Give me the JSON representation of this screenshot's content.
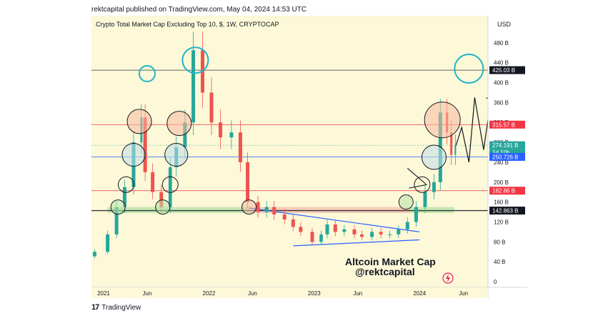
{
  "header": {
    "publisher": "rektcapital published on TradingView.com, May 04, 2024 14:53 UTC"
  },
  "footer": {
    "logo_icon": "tradingview-logo-icon",
    "brand": "TradingView"
  },
  "chart_data": {
    "type": "candlestick",
    "title": "Crypto Total Market Cap Excluding Top 10, $, 1W, CRYPTOCAP",
    "currency": "USD",
    "annotation_title": "Altcoin Market Cap",
    "annotation_handle": "@rektcapital",
    "y_unit": "B",
    "ylim": [
      0,
      520
    ],
    "y_ticks": [
      0,
      40,
      80,
      120,
      160,
      200,
      240,
      280,
      320,
      360,
      400,
      440,
      480
    ],
    "y_tick_labels": [
      "0",
      "40 B",
      "80 B",
      "120 B",
      "160 B",
      "200 B",
      "240 B",
      "280 B",
      "320 B",
      "360 B",
      "400 B",
      "440 B",
      "480 B"
    ],
    "x_tick_labels": [
      "2021",
      "Jun",
      "2022",
      "Jun",
      "2023",
      "Jun",
      "2024",
      "Jun"
    ],
    "x_tick_dates": [
      "2021-01-01",
      "2021-06-01",
      "2022-01-01",
      "2022-06-01",
      "2023-01-01",
      "2023-06-01",
      "2024-01-01",
      "2024-06-01"
    ],
    "price_labels": [
      {
        "value": 425.03,
        "text": "425.03 B",
        "bg": "#131722",
        "fg": "#ffffff"
      },
      {
        "value": 315.57,
        "text": "315.57 B",
        "bg": "#f23645",
        "fg": "#ffffff"
      },
      {
        "value": 274.191,
        "text": "274.191 B",
        "bg": "#26a69a",
        "fg": "#ffffff"
      },
      {
        "value": 250.726,
        "text": "250.726 B",
        "bg": "#2962ff",
        "fg": "#ffffff"
      },
      {
        "value": 182.86,
        "text": "182.86 B",
        "bg": "#f23645",
        "fg": "#ffffff"
      },
      {
        "value": 142.863,
        "text": "142.863 B",
        "bg": "#131722",
        "fg": "#ffffff"
      }
    ],
    "countdown_label": "1d 10h",
    "horizontal_levels": [
      {
        "value": 425.03,
        "color": "#131722"
      },
      {
        "value": 315.57,
        "color": "#f23645"
      },
      {
        "value": 250.726,
        "color": "#2962ff"
      },
      {
        "value": 182.86,
        "color": "#f23645"
      },
      {
        "value": 142.863,
        "color": "#131722"
      }
    ],
    "colors": {
      "up": "#26a69a",
      "down": "#ef5350",
      "background": "#fcf8d8",
      "circle_teal": "#1fb3c8"
    },
    "series": [
      {
        "name": "",
        "x": [
          "2020-12-01",
          "2021-01-15",
          "2021-02-15",
          "2021-03-15",
          "2021-04-15",
          "2021-05-12",
          "2021-05-25",
          "2021-06-20",
          "2021-07-20",
          "2021-08-20",
          "2021-09-10",
          "2021-10-10",
          "2021-11-08",
          "2021-12-10",
          "2022-01-10",
          "2022-02-10",
          "2022-03-20",
          "2022-04-20",
          "2022-05-15",
          "2022-06-20",
          "2022-07-20",
          "2022-08-15",
          "2022-09-20",
          "2022-10-20",
          "2022-11-15",
          "2022-12-25",
          "2023-01-25",
          "2023-02-15",
          "2023-03-15",
          "2023-04-15",
          "2023-05-20",
          "2023-06-15",
          "2023-07-20",
          "2023-08-20",
          "2023-09-20",
          "2023-10-20",
          "2023-11-20",
          "2023-12-20",
          "2024-01-20",
          "2024-02-20",
          "2024-03-13",
          "2024-04-05",
          "2024-04-20",
          "2024-05-04"
        ],
        "values": [
          60,
          95,
          150,
          190,
          280,
          330,
          220,
          180,
          150,
          230,
          270,
          320,
          465,
          380,
          320,
          290,
          300,
          240,
          160,
          140,
          150,
          135,
          125,
          110,
          100,
          80,
          95,
          115,
          100,
          105,
          95,
          90,
          100,
          95,
          95,
          105,
          120,
          150,
          180,
          200,
          340,
          300,
          255,
          274
        ]
      }
    ],
    "projection": {
      "x": [
        "2024-05-04",
        "2024-05-26",
        "2024-06-20",
        "2024-07-10",
        "2024-08-10"
      ],
      "values": [
        270,
        310,
        240,
        370,
        265
      ]
    }
  }
}
